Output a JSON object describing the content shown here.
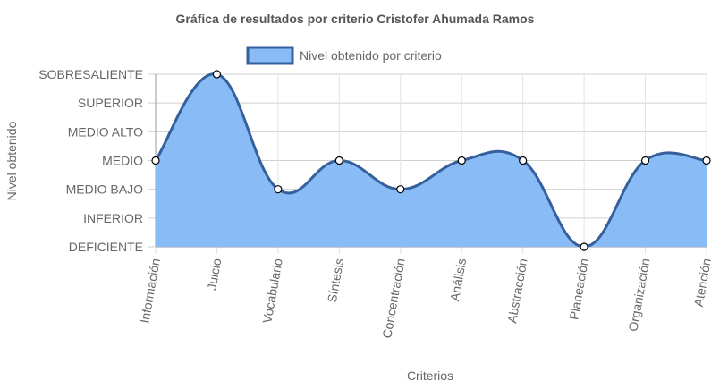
{
  "chart_data": {
    "type": "area",
    "title": "Gráfica de resultados por criterio Cristofer Ahumada Ramos",
    "xlabel": "Criterios",
    "ylabel": "Nivel obtenido",
    "y_levels": [
      "DEFICIENTE",
      "INFERIOR",
      "MEDIO BAJO",
      "MEDIO",
      "MEDIO ALTO",
      "SUPERIOR",
      "SOBRESALIENTE"
    ],
    "ylim": [
      1,
      7
    ],
    "categories": [
      "Información",
      "Juicio",
      "Vocabulario",
      "Síntesis",
      "Concentración",
      "Análisis",
      "Abstracción",
      "Planeación",
      "Organización",
      "Atención"
    ],
    "series": [
      {
        "name": "Nivel obtenido por criterio",
        "values": [
          4,
          7,
          3,
          4,
          3,
          4,
          4,
          1,
          4,
          4
        ],
        "fill_color": "#89bbf7",
        "line_color": "#35609b"
      }
    ],
    "grid": true,
    "legend_position": "top"
  }
}
